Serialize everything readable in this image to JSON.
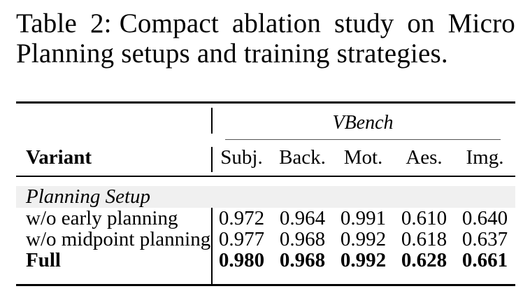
{
  "caption": {
    "label": "Table 2:",
    "text": "Compact ablation study on Micro Planning setups and training strategies."
  },
  "table": {
    "group_header": "VBench",
    "variant_header": "Variant",
    "columns": [
      "Subj.",
      "Back.",
      "Mot.",
      "Aes.",
      "Img."
    ],
    "section_label": "Planning Setup",
    "rows": [
      {
        "variant": "w/o early planning",
        "values": [
          "0.972",
          "0.964",
          "0.991",
          "0.610",
          "0.640"
        ]
      },
      {
        "variant": "w/o midpoint planning",
        "values": [
          "0.977",
          "0.968",
          "0.992",
          "0.618",
          "0.637"
        ]
      },
      {
        "variant": "Full",
        "values": [
          "0.980",
          "0.968",
          "0.992",
          "0.628",
          "0.661"
        ]
      }
    ],
    "colors": {
      "section_bg": "#f0f0f0",
      "rule": "#000000",
      "cmidrule": "#555555"
    }
  }
}
